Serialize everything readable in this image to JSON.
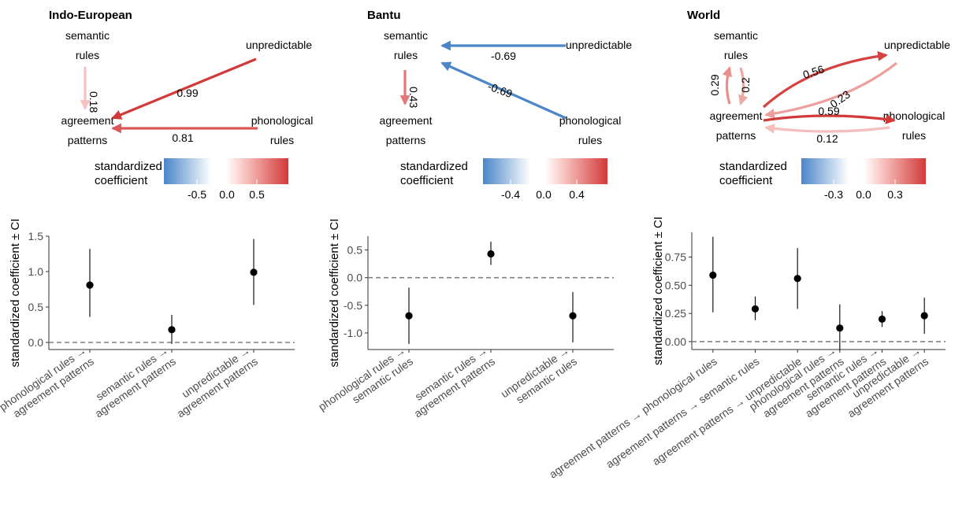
{
  "chart_data": [
    {
      "type": "scatter",
      "title": "Indo-European",
      "ylabel": "standardized coefficient ± CI",
      "ylim": [
        -0.1,
        1.5
      ],
      "yticks": [
        0.0,
        0.5,
        1.0,
        1.5
      ],
      "ytick_labels": [
        "0.0",
        "0.5",
        "1.0",
        "1.5"
      ],
      "categories": [
        [
          "phonological rules →",
          "agreement patterns"
        ],
        [
          "semantic rules →",
          "agreement patterns"
        ],
        [
          "unpredictable →",
          "agreement patterns"
        ]
      ],
      "values": [
        0.81,
        0.18,
        0.99
      ],
      "ci_low": [
        0.36,
        -0.02,
        0.53
      ],
      "ci_high": [
        1.32,
        0.39,
        1.46
      ],
      "reference_line": 0.0,
      "colorbar": {
        "title": [
          "standardized",
          "coefficient"
        ],
        "ticks": [
          -0.5,
          0.0,
          0.5
        ],
        "tick_labels": [
          "-0.5",
          "0.0",
          "0.5"
        ],
        "range": [
          -0.99,
          0.99
        ]
      },
      "network": {
        "nodes": [
          {
            "id": "sem",
            "lines": [
              "semantic",
              "rules"
            ]
          },
          {
            "id": "unp",
            "lines": [
              "unpredictable"
            ]
          },
          {
            "id": "agr",
            "lines": [
              "agreement",
              "patterns"
            ]
          },
          {
            "id": "pho",
            "lines": [
              "phonological",
              "rules"
            ]
          }
        ],
        "edges": [
          {
            "from": "sem",
            "to": "agr",
            "value": 0.18,
            "label": "0.18"
          },
          {
            "from": "unp",
            "to": "agr",
            "value": 0.99,
            "label": "0.99"
          },
          {
            "from": "pho",
            "to": "agr",
            "value": 0.81,
            "label": "0.81"
          }
        ]
      }
    },
    {
      "type": "scatter",
      "title": "Bantu",
      "ylabel": "standardized coefficient ± CI",
      "ylim": [
        -1.3,
        0.75
      ],
      "yticks": [
        -1.0,
        -0.5,
        0.0,
        0.5
      ],
      "ytick_labels": [
        "-1.0",
        "-0.5",
        "0.0",
        "0.5"
      ],
      "categories": [
        [
          "phonological rules →",
          "semantic rules"
        ],
        [
          "semantic rules →",
          "agreement patterns"
        ],
        [
          "unpredictable →",
          "semantic rules"
        ]
      ],
      "values": [
        -0.69,
        0.43,
        -0.69
      ],
      "ci_low": [
        -1.2,
        0.23,
        -1.17
      ],
      "ci_high": [
        -0.18,
        0.65,
        -0.26
      ],
      "reference_line": 0.0,
      "colorbar": {
        "title": [
          "standardized",
          "coefficient"
        ],
        "ticks": [
          -0.4,
          0.0,
          0.4
        ],
        "tick_labels": [
          "-0.4",
          "0.0",
          "0.4"
        ],
        "range": [
          -0.69,
          0.69
        ]
      },
      "network": {
        "nodes": [
          {
            "id": "sem",
            "lines": [
              "semantic",
              "rules"
            ]
          },
          {
            "id": "unp",
            "lines": [
              "unpredictable"
            ]
          },
          {
            "id": "agr",
            "lines": [
              "agreement",
              "patterns"
            ]
          },
          {
            "id": "pho",
            "lines": [
              "phonological",
              "rules"
            ]
          }
        ],
        "edges": [
          {
            "from": "unp",
            "to": "sem",
            "value": -0.69,
            "label": "-0.69"
          },
          {
            "from": "sem",
            "to": "agr",
            "value": 0.43,
            "label": "0.43"
          },
          {
            "from": "pho",
            "to": "sem",
            "value": -0.69,
            "label": "-0.69"
          }
        ]
      }
    },
    {
      "type": "scatter",
      "title": "World",
      "ylabel": "standardized coefficient ± CI",
      "ylim": [
        -0.07,
        0.97
      ],
      "yticks": [
        0.0,
        0.25,
        0.5,
        0.75
      ],
      "ytick_labels": [
        "0.00",
        "0.25",
        "0.50",
        "0.75"
      ],
      "categories": [
        [
          "agreement patterns → phonological rules"
        ],
        [
          "agreement patterns → semantic rules"
        ],
        [
          "agreement patterns → unpredictable"
        ],
        [
          "phonological rules →",
          "agreement patterns"
        ],
        [
          "semantic rules →",
          "agreement patterns"
        ],
        [
          "unpredictable →",
          "agreement patterns"
        ]
      ],
      "values": [
        0.59,
        0.29,
        0.56,
        0.12,
        0.2,
        0.23
      ],
      "ci_low": [
        0.26,
        0.19,
        0.29,
        -0.08,
        0.13,
        0.07
      ],
      "ci_high": [
        0.93,
        0.4,
        0.83,
        0.33,
        0.27,
        0.39
      ],
      "reference_line": 0.0,
      "colorbar": {
        "title": [
          "standardized",
          "coefficient"
        ],
        "ticks": [
          -0.3,
          0.0,
          0.3
        ],
        "tick_labels": [
          "-0.3",
          "0.0",
          "0.3"
        ],
        "range": [
          -0.59,
          0.59
        ]
      },
      "network": {
        "nodes": [
          {
            "id": "sem",
            "lines": [
              "semantic",
              "rules"
            ]
          },
          {
            "id": "unp",
            "lines": [
              "unpredictable"
            ]
          },
          {
            "id": "agr",
            "lines": [
              "agreement",
              "patterns"
            ]
          },
          {
            "id": "pho",
            "lines": [
              "phonological",
              "rules"
            ]
          }
        ],
        "edges": [
          {
            "from": "agr",
            "to": "sem",
            "value": 0.29,
            "label": "0.29"
          },
          {
            "from": "sem",
            "to": "agr",
            "value": 0.2,
            "label": "0.2"
          },
          {
            "from": "agr",
            "to": "unp",
            "value": 0.56,
            "label": "0.56"
          },
          {
            "from": "unp",
            "to": "agr",
            "value": 0.23,
            "label": "0.23"
          },
          {
            "from": "agr",
            "to": "pho",
            "value": 0.59,
            "label": "0.59"
          },
          {
            "from": "pho",
            "to": "agr",
            "value": 0.12,
            "label": "0.12"
          }
        ]
      }
    }
  ],
  "colors": {
    "negative": "#4a86c8",
    "zero": "#ffffff",
    "positive": "#d23a3a",
    "point": "#000000",
    "reference_line": "#808080",
    "axis": "#333333"
  }
}
